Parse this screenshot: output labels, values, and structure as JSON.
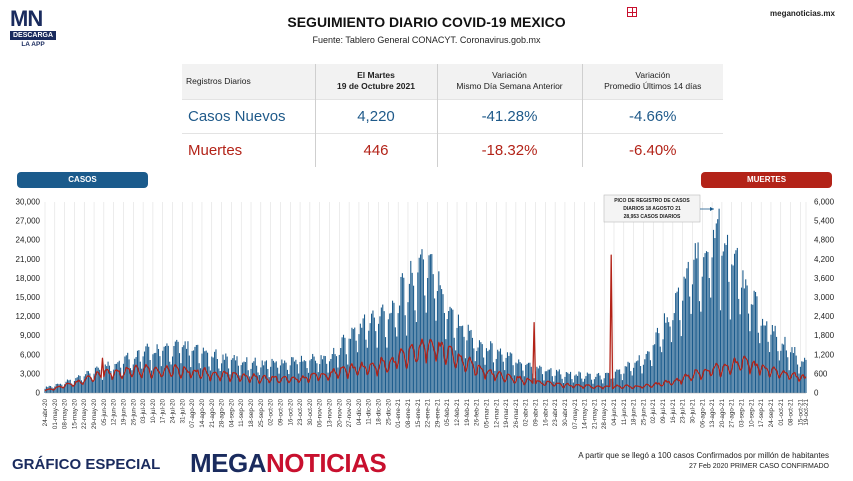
{
  "logo": {
    "mn": "MN",
    "descarga": "DESCARGA",
    "app": "LA APP"
  },
  "header": {
    "title": "SEGUIMIENTO DIARIO COVID-19 MEXICO",
    "source": "Fuente: Tablero General CONACYT. Coronavirus.gob.mx",
    "site": "meganoticias.mx",
    "grid_icon_color": "#c8102e"
  },
  "table": {
    "col1": "Registros Diarios",
    "col2_line1": "El Martes",
    "col2_line2": "19 de Octubre 2021",
    "col3_line1": "Variación",
    "col3_line2": "Mismo Día Semana Anterior",
    "col4_line1": "Variación",
    "col4_line2": "Promedio Últimos 14 días",
    "rows": [
      {
        "label": "Casos Nuevos",
        "value": "4,220",
        "var_week": "-41.28%",
        "var_14d": "-4.66%"
      },
      {
        "label": "Muertes",
        "value": "446",
        "var_week": "-18.32%",
        "var_14d": "-6.40%"
      }
    ]
  },
  "legend": {
    "casos": "CASOS",
    "muertes": "MUERTES"
  },
  "annotation": {
    "line1": "PICO DE REGISTRO DE CASOS",
    "line2": "DIARIOS 18 AGOSTO 21",
    "line3": "28,953 CASOS DIARIOS"
  },
  "colors": {
    "casos": "#1b5b8c",
    "muertes": "#b32318",
    "brand": "#1a2b5e"
  },
  "chart_data": {
    "type": "bar",
    "series": [
      {
        "name": "CASOS",
        "axis": "left",
        "anchors": [
          [
            "2020-04-24",
            800
          ],
          [
            "2020-05-15",
            2000
          ],
          [
            "2020-06-05",
            3800
          ],
          [
            "2020-07-03",
            6000
          ],
          [
            "2020-07-31",
            7000
          ],
          [
            "2020-08-21",
            5500
          ],
          [
            "2020-09-25",
            4300
          ],
          [
            "2020-10-23",
            5000
          ],
          [
            "2020-11-13",
            5200
          ],
          [
            "2020-12-04",
            10000
          ],
          [
            "2020-12-25",
            12000
          ],
          [
            "2021-01-08",
            16000
          ],
          [
            "2021-01-22",
            20500
          ],
          [
            "2021-02-05",
            13000
          ],
          [
            "2021-02-26",
            7500
          ],
          [
            "2021-03-19",
            5500
          ],
          [
            "2021-04-09",
            3800
          ],
          [
            "2021-04-30",
            2800
          ],
          [
            "2021-05-21",
            2500
          ],
          [
            "2021-06-04",
            2800
          ],
          [
            "2021-06-25",
            5200
          ],
          [
            "2021-07-16",
            12500
          ],
          [
            "2021-07-30",
            18500
          ],
          [
            "2021-08-13",
            22500
          ],
          [
            "2021-08-18",
            24000
          ],
          [
            "2021-09-03",
            17500
          ],
          [
            "2021-09-17",
            11000
          ],
          [
            "2021-10-01",
            7500
          ],
          [
            "2021-10-19",
            4220
          ]
        ],
        "spikes": [
          [
            "2021-08-18",
            28953
          ]
        ]
      },
      {
        "name": "MUERTES",
        "axis": "right",
        "anchors": [
          [
            "2020-04-24",
            80
          ],
          [
            "2020-05-15",
            300
          ],
          [
            "2020-06-05",
            600
          ],
          [
            "2020-07-03",
            700
          ],
          [
            "2020-07-31",
            700
          ],
          [
            "2020-08-21",
            600
          ],
          [
            "2020-09-25",
            450
          ],
          [
            "2020-10-23",
            450
          ],
          [
            "2020-11-13",
            600
          ],
          [
            "2020-12-04",
            750
          ],
          [
            "2020-12-25",
            900
          ],
          [
            "2021-01-22",
            1500
          ],
          [
            "2021-02-05",
            1300
          ],
          [
            "2021-02-26",
            750
          ],
          [
            "2021-03-19",
            500
          ],
          [
            "2021-04-09",
            350
          ],
          [
            "2021-04-30",
            250
          ],
          [
            "2021-05-21",
            200
          ],
          [
            "2021-06-25",
            200
          ],
          [
            "2021-07-16",
            350
          ],
          [
            "2021-08-13",
            750
          ],
          [
            "2021-09-03",
            950
          ],
          [
            "2021-10-01",
            650
          ],
          [
            "2021-10-19",
            446
          ]
        ],
        "spikes": [
          [
            "2020-06-04",
            1090
          ],
          [
            "2021-04-08",
            2210
          ],
          [
            "2021-06-02",
            4330
          ]
        ]
      }
    ],
    "ylim_left": [
      0,
      30000
    ],
    "ylim_right": [
      0,
      6000
    ],
    "yticks_left": [
      "0",
      "3,000",
      "6,000",
      "9,000",
      "12,000",
      "15,000",
      "18,000",
      "21,000",
      "24,000",
      "27,000",
      "30,000"
    ],
    "yticks_right": [
      "0",
      "600",
      "1,200",
      "1,800",
      "2,400",
      "3,000",
      "3,600",
      "4,200",
      "4,800",
      "5,400",
      "6,000"
    ],
    "xticks": [
      "24-abr-20",
      "01-may-20",
      "08-may-20",
      "15-may-20",
      "22-may-20",
      "29-may-20",
      "05-jun-20",
      "12-jun-20",
      "19-jun-20",
      "26-jun-20",
      "03-jul-20",
      "10-jul-20",
      "17-jul-20",
      "24-jul-20",
      "31-jul-20",
      "07-ago-20",
      "14-ago-20",
      "21-ago-20",
      "28-ago-20",
      "04-sep-20",
      "11-sep-20",
      "18-sep-20",
      "25-sep-20",
      "02-oct-20",
      "09-oct-20",
      "16-oct-20",
      "23-oct-20",
      "30-oct-20",
      "06-nov-20",
      "13-nov-20",
      "20-nov-20",
      "27-nov-20",
      "04-dic-20",
      "11-dic-20",
      "18-dic-20",
      "25-dic-20",
      "01-ene-21",
      "08-ene-21",
      "15-ene-21",
      "22-ene-21",
      "29-ene-21",
      "05-feb-21",
      "12-feb-21",
      "19-feb-21",
      "26-feb-21",
      "05-mar-21",
      "12-mar-21",
      "19-mar-21",
      "26-mar-21",
      "02-abr-21",
      "09-abr-21",
      "16-abr-21",
      "23-abr-21",
      "30-abr-21",
      "07-may-21",
      "14-may-21",
      "21-may-21",
      "28-may-21",
      "04-jun-21",
      "11-jun-21",
      "18-jun-21",
      "25-jun-21",
      "02-jul-21",
      "09-jul-21",
      "16-jul-21",
      "23-jul-21",
      "30-jul-21",
      "06-ago-21",
      "13-ago-21",
      "20-ago-21",
      "27-ago-21",
      "03-sep-21",
      "10-sep-21",
      "17-sep-21",
      "24-sep-21",
      "01-oct-21",
      "08-oct-21",
      "15-oct-21",
      "19-oct-21"
    ],
    "grid": "vertical",
    "legend": "top-left / top-right"
  },
  "footer": {
    "left": "GRÁFICO ESPECIAL",
    "brand_a": "MEGA",
    "brand_b": "NOTICIAS",
    "note1": "A partir que se llegó a 100 casos Confirmados por millón de habitantes",
    "note2": "27 Feb 2020 PRIMER CASO CONFIRMADO"
  }
}
